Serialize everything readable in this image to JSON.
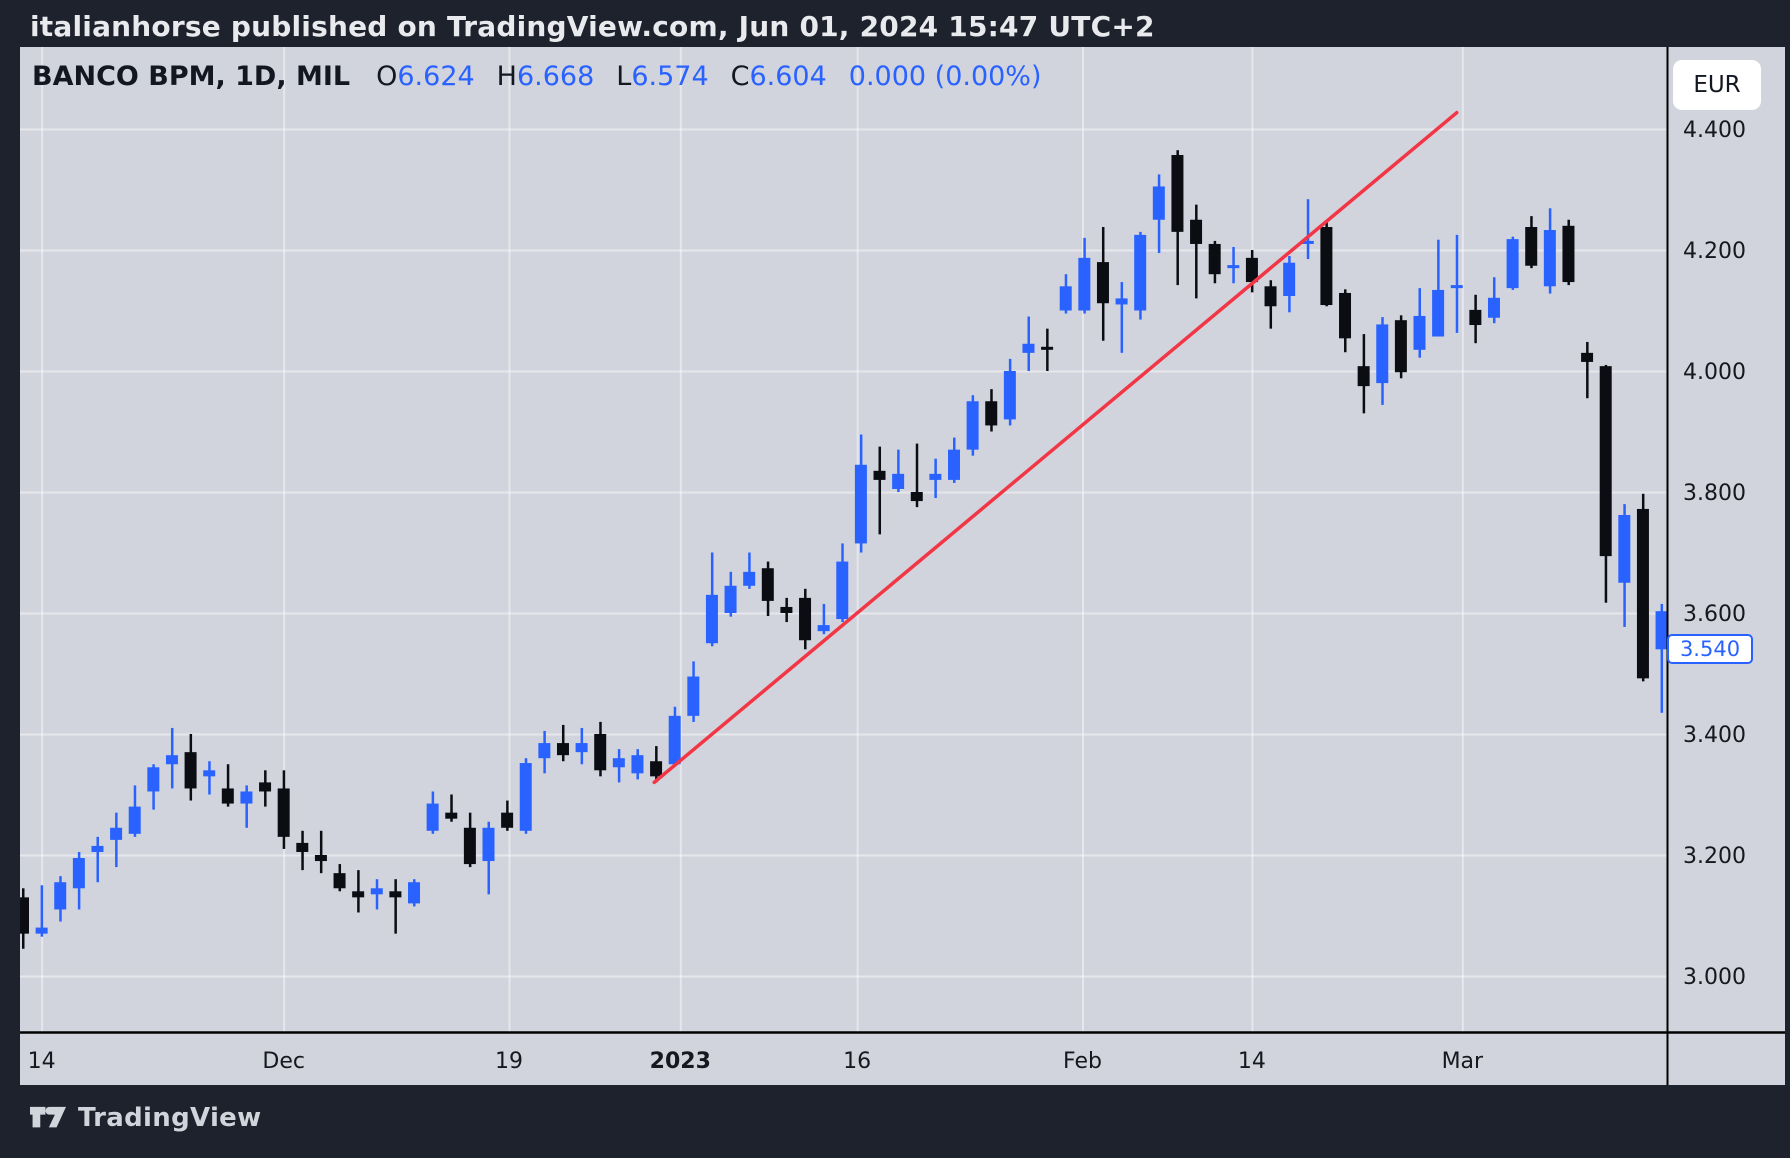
{
  "header": {
    "title": "italianhorse published on TradingView.com, Jun 01, 2024 15:47 UTC+2"
  },
  "legend": {
    "symbol": "BANCO BPM, 1D, MIL",
    "fields": [
      {
        "k": "O",
        "v": "6.624"
      },
      {
        "k": "H",
        "v": "6.668"
      },
      {
        "k": "L",
        "v": "6.574"
      },
      {
        "k": "C",
        "v": "6.604"
      }
    ],
    "change": "0.000 (0.00%)"
  },
  "axis": {
    "currency": "EUR",
    "current_price": "3.540",
    "price_ticks": [
      4.4,
      4.2,
      4.0,
      3.8,
      3.6,
      3.4,
      3.2,
      3.0
    ],
    "time_labels": [
      {
        "t": "14",
        "i": 1.0,
        "b": false
      },
      {
        "t": "Dec",
        "i": 14.0,
        "b": false
      },
      {
        "t": "19",
        "i": 26.1,
        "b": false
      },
      {
        "t": "2023",
        "i": 35.3,
        "b": true
      },
      {
        "t": "16",
        "i": 44.8,
        "b": false
      },
      {
        "t": "Feb",
        "i": 56.9,
        "b": false
      },
      {
        "t": "14",
        "i": 66.0,
        "b": false
      },
      {
        "t": "Mar",
        "i": 77.3,
        "b": false
      }
    ]
  },
  "footer": {
    "brand": "TradingView"
  },
  "colors": {
    "up": "#2962ff",
    "down": "#0b0d13",
    "trendline": "#f23645",
    "panel_bg": "#d1d4dc",
    "dark_bg": "#1e222d",
    "grid": "rgba(255,255,255,0.45)",
    "axis_text": "#15191f",
    "accent_label": "#2962ff"
  },
  "chart_data": {
    "type": "candlestick",
    "title": "BANCO BPM, 1D, MIL",
    "symbol": "BANCO BPM",
    "timeframe": "1D",
    "exchange": "MIL",
    "ylabel": "EUR",
    "ylim": [
      2.91,
      4.54
    ],
    "grid": true,
    "x_axis_labels": [
      "14",
      "Dec",
      "19",
      "2023",
      "16",
      "Feb",
      "14",
      "Mar"
    ],
    "last_price": 3.54,
    "candles": [
      [
        3.13,
        3.145,
        3.045,
        3.07,
        "d"
      ],
      [
        3.07,
        3.15,
        3.065,
        3.08,
        "u"
      ],
      [
        3.11,
        3.165,
        3.09,
        3.155,
        "u"
      ],
      [
        3.145,
        3.205,
        3.11,
        3.195,
        "u"
      ],
      [
        3.205,
        3.23,
        3.155,
        3.215,
        "u"
      ],
      [
        3.225,
        3.27,
        3.18,
        3.245,
        "u"
      ],
      [
        3.235,
        3.315,
        3.23,
        3.28,
        "u"
      ],
      [
        3.305,
        3.35,
        3.275,
        3.345,
        "u"
      ],
      [
        3.35,
        3.41,
        3.31,
        3.365,
        "u"
      ],
      [
        3.37,
        3.4,
        3.29,
        3.31,
        "d"
      ],
      [
        3.33,
        3.355,
        3.3,
        3.34,
        "u"
      ],
      [
        3.31,
        3.35,
        3.28,
        3.285,
        "d"
      ],
      [
        3.285,
        3.315,
        3.245,
        3.305,
        "u"
      ],
      [
        3.32,
        3.34,
        3.28,
        3.305,
        "d"
      ],
      [
        3.31,
        3.34,
        3.21,
        3.23,
        "d"
      ],
      [
        3.22,
        3.24,
        3.175,
        3.205,
        "d"
      ],
      [
        3.2,
        3.24,
        3.17,
        3.19,
        "d"
      ],
      [
        3.17,
        3.185,
        3.14,
        3.145,
        "d"
      ],
      [
        3.14,
        3.175,
        3.105,
        3.13,
        "d"
      ],
      [
        3.135,
        3.16,
        3.11,
        3.145,
        "u"
      ],
      [
        3.14,
        3.16,
        3.07,
        3.13,
        "d"
      ],
      [
        3.12,
        3.16,
        3.115,
        3.155,
        "u"
      ],
      [
        3.24,
        3.305,
        3.235,
        3.285,
        "u"
      ],
      [
        3.27,
        3.3,
        3.255,
        3.26,
        "d"
      ],
      [
        3.245,
        3.27,
        3.18,
        3.185,
        "d"
      ],
      [
        3.19,
        3.255,
        3.135,
        3.245,
        "u"
      ],
      [
        3.27,
        3.29,
        3.24,
        3.245,
        "d"
      ],
      [
        3.24,
        3.36,
        3.235,
        3.352,
        "u"
      ],
      [
        3.36,
        3.405,
        3.335,
        3.385,
        "u"
      ],
      [
        3.385,
        3.415,
        3.355,
        3.365,
        "d"
      ],
      [
        3.37,
        3.41,
        3.35,
        3.385,
        "u"
      ],
      [
        3.4,
        3.42,
        3.33,
        3.34,
        "d"
      ],
      [
        3.345,
        3.375,
        3.32,
        3.36,
        "u"
      ],
      [
        3.335,
        3.375,
        3.325,
        3.365,
        "u"
      ],
      [
        3.355,
        3.38,
        3.32,
        3.33,
        "d"
      ],
      [
        3.35,
        3.445,
        3.35,
        3.43,
        "u"
      ],
      [
        3.43,
        3.52,
        3.42,
        3.495,
        "u"
      ],
      [
        3.55,
        3.7,
        3.545,
        3.63,
        "u"
      ],
      [
        3.6,
        3.668,
        3.594,
        3.645,
        "u"
      ],
      [
        3.645,
        3.7,
        3.64,
        3.668,
        "u"
      ],
      [
        3.674,
        3.685,
        3.595,
        3.62,
        "d"
      ],
      [
        3.61,
        3.625,
        3.585,
        3.6,
        "d"
      ],
      [
        3.625,
        3.64,
        3.54,
        3.555,
        "d"
      ],
      [
        3.57,
        3.615,
        3.565,
        3.58,
        "u"
      ],
      [
        3.59,
        3.715,
        3.585,
        3.685,
        "u"
      ],
      [
        3.715,
        3.895,
        3.7,
        3.845,
        "u"
      ],
      [
        3.835,
        3.875,
        3.73,
        3.82,
        "d"
      ],
      [
        3.805,
        3.87,
        3.8,
        3.83,
        "u"
      ],
      [
        3.8,
        3.88,
        3.775,
        3.785,
        "d"
      ],
      [
        3.82,
        3.855,
        3.79,
        3.83,
        "u"
      ],
      [
        3.82,
        3.89,
        3.815,
        3.87,
        "u"
      ],
      [
        3.87,
        3.96,
        3.86,
        3.95,
        "u"
      ],
      [
        3.95,
        3.97,
        3.9,
        3.91,
        "d"
      ],
      [
        3.92,
        4.02,
        3.91,
        4.0,
        "u"
      ],
      [
        4.03,
        4.09,
        4.0,
        4.045,
        "u"
      ],
      [
        4.04,
        4.07,
        4.0,
        4.035,
        "d"
      ],
      [
        4.1,
        4.16,
        4.095,
        4.14,
        "u"
      ],
      [
        4.1,
        4.22,
        4.095,
        4.187,
        "u"
      ],
      [
        4.18,
        4.238,
        4.05,
        4.112,
        "d"
      ],
      [
        4.11,
        4.147,
        4.03,
        4.12,
        "u"
      ],
      [
        4.1,
        4.23,
        4.085,
        4.225,
        "u"
      ],
      [
        4.25,
        4.325,
        4.195,
        4.305,
        "u"
      ],
      [
        4.357,
        4.365,
        4.142,
        4.23,
        "d"
      ],
      [
        4.25,
        4.275,
        4.12,
        4.21,
        "d"
      ],
      [
        4.21,
        4.215,
        4.145,
        4.16,
        "d"
      ],
      [
        4.17,
        4.205,
        4.145,
        4.175,
        "u"
      ],
      [
        4.187,
        4.2,
        4.13,
        4.147,
        "d"
      ],
      [
        4.14,
        4.15,
        4.07,
        4.107,
        "d"
      ],
      [
        4.124,
        4.19,
        4.097,
        4.179,
        "u"
      ],
      [
        4.21,
        4.284,
        4.185,
        4.215,
        "u"
      ],
      [
        4.238,
        4.246,
        4.107,
        4.109,
        "d"
      ],
      [
        4.129,
        4.135,
        4.031,
        4.054,
        "d"
      ],
      [
        4.008,
        4.061,
        3.93,
        3.975,
        "d"
      ],
      [
        3.98,
        4.089,
        3.944,
        4.077,
        "u"
      ],
      [
        4.084,
        4.092,
        3.988,
        3.998,
        "d"
      ],
      [
        4.035,
        4.137,
        4.022,
        4.091,
        "u"
      ],
      [
        4.057,
        4.217,
        4.057,
        4.134,
        "u"
      ],
      [
        4.137,
        4.225,
        4.063,
        4.142,
        "u"
      ],
      [
        4.101,
        4.126,
        4.046,
        4.076,
        "d"
      ],
      [
        4.088,
        4.155,
        4.079,
        4.121,
        "u"
      ],
      [
        4.137,
        4.222,
        4.134,
        4.218,
        "u"
      ],
      [
        4.238,
        4.256,
        4.17,
        4.174,
        "d"
      ],
      [
        4.14,
        4.269,
        4.128,
        4.233,
        "u"
      ],
      [
        4.24,
        4.25,
        4.142,
        4.147,
        "d"
      ],
      [
        4.03,
        4.048,
        3.955,
        4.015,
        "d"
      ],
      [
        4.008,
        4.01,
        3.617,
        3.694,
        "d"
      ],
      [
        3.65,
        3.78,
        3.577,
        3.762,
        "u"
      ],
      [
        3.772,
        3.797,
        3.487,
        3.492,
        "d"
      ],
      [
        3.603,
        3.615,
        3.435,
        3.54,
        "u"
      ]
    ],
    "trendline": {
      "from": {
        "i": 33.9,
        "price": 3.32
      },
      "to": {
        "i": 77.0,
        "price": 4.427
      },
      "color": "#f23645"
    }
  }
}
